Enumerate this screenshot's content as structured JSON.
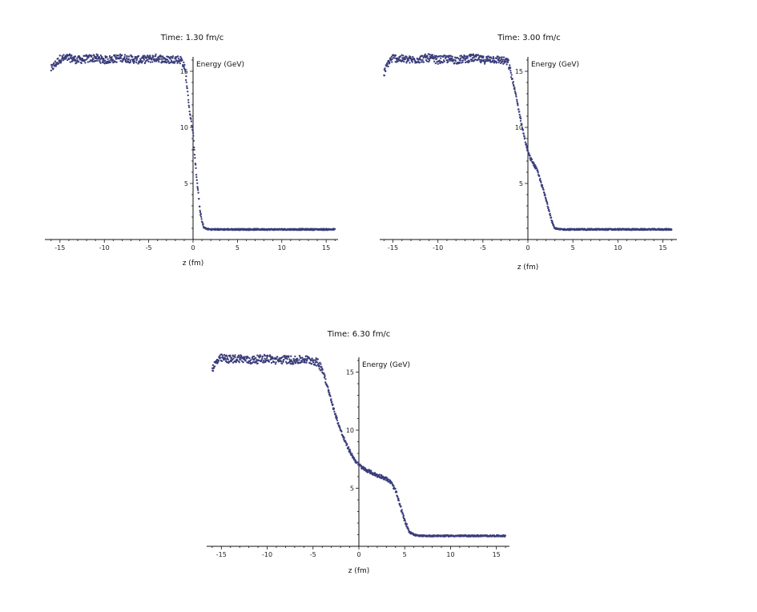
{
  "chart_data": [
    {
      "type": "scatter",
      "title": "Time: 1.30 fm/c",
      "xlabel": "z (fm)",
      "ylabel": "Energy (GeV)",
      "xlim": [
        -16,
        16.5
      ],
      "ylim": [
        0,
        16.5
      ],
      "xticks": [
        -15,
        -10,
        -5,
        0,
        5,
        10,
        15
      ],
      "yticks": [
        5,
        10,
        15
      ],
      "xtick_labels": [
        "-15",
        "-10",
        "-5",
        "0",
        "5",
        "10",
        "15"
      ],
      "ytick_labels": [
        "5",
        "10",
        "15"
      ],
      "grid": false,
      "color": "#3a3d7a",
      "series": [
        {
          "values_description": "plateau ~16 for z < -1, steep drop to ~1 by z ~ 1.5, then flat ~0.9",
          "x": [
            -16,
            -15,
            -14,
            -13,
            -12,
            -11,
            -10,
            -9,
            -8,
            -7,
            -6,
            -5,
            -4,
            -3,
            -2,
            -1.3,
            -1.0,
            -0.8,
            -0.6,
            -0.4,
            -0.2,
            0.0,
            0.2,
            0.4,
            0.6,
            0.8,
            1.0,
            1.2,
            1.5,
            2,
            4,
            6,
            8,
            10,
            12,
            14,
            16
          ],
          "y": [
            15.2,
            16.1,
            16.2,
            16.0,
            16.1,
            16.2,
            16.0,
            16.1,
            16.2,
            16.1,
            16.0,
            16.1,
            16.2,
            16.0,
            16.1,
            16.0,
            15.5,
            14.5,
            13.0,
            11.5,
            10.5,
            9.5,
            7.5,
            5.5,
            4.0,
            2.5,
            1.6,
            1.1,
            0.95,
            0.9,
            0.9,
            0.9,
            0.9,
            0.9,
            0.9,
            0.9,
            0.9
          ]
        }
      ]
    },
    {
      "type": "scatter",
      "title": "Time: 3.00 fm/c",
      "xlabel": "z (fm)",
      "ylabel": "Energy (GeV)",
      "xlim": [
        -16,
        16.5
      ],
      "ylim": [
        0,
        16.5
      ],
      "xticks": [
        -15,
        -10,
        -5,
        0,
        5,
        10,
        15
      ],
      "yticks": [
        5,
        10,
        15
      ],
      "xtick_labels": [
        "-15",
        "-10",
        "-5",
        "0",
        "5",
        "10",
        "15"
      ],
      "ytick_labels": [
        "5",
        "10",
        "15"
      ],
      "grid": false,
      "color": "#3a3d7a",
      "series": [
        {
          "values_description": "plateau ~16 for z < -2, drop through ~7.5 near z = 0, shoulder to ~6 at z ~ 1, drop to ~1 by z ~ 3",
          "x": [
            -16,
            -15.5,
            -15,
            -14,
            -13,
            -12,
            -11,
            -10,
            -9,
            -8,
            -7,
            -6,
            -5,
            -4,
            -3,
            -2.2,
            -2.0,
            -1.5,
            -1.0,
            -0.5,
            0.0,
            0.3,
            0.6,
            1.0,
            1.5,
            2.0,
            2.5,
            2.8,
            3.0,
            3.5,
            5,
            8,
            11,
            14,
            16
          ],
          "y": [
            14.8,
            15.8,
            16.2,
            16.1,
            16.0,
            16.1,
            16.2,
            16.0,
            16.1,
            16.0,
            16.1,
            16.2,
            16.0,
            16.1,
            16.0,
            15.8,
            15.2,
            13.5,
            11.5,
            9.5,
            7.8,
            7.2,
            6.8,
            6.2,
            5.0,
            3.6,
            2.2,
            1.3,
            1.0,
            0.9,
            0.9,
            0.9,
            0.9,
            0.9,
            0.9
          ]
        }
      ]
    },
    {
      "type": "scatter",
      "title": "Time: 6.30 fm/c",
      "xlabel": "z (fm)",
      "ylabel": "Energy (GeV)",
      "xlim": [
        -16,
        16.5
      ],
      "ylim": [
        0,
        16.5
      ],
      "xticks": [
        -15,
        -10,
        -5,
        0,
        5,
        10,
        15
      ],
      "yticks": [
        5,
        10,
        15
      ],
      "xtick_labels": [
        "-15",
        "-10",
        "-5",
        "0",
        "5",
        "10",
        "15"
      ],
      "ytick_labels": [
        "5",
        "10",
        "15"
      ],
      "grid": false,
      "color": "#3a3d7a",
      "series": [
        {
          "values_description": "plateau ~16 for z < -4, drop to ~7 at z ~ 0, shoulder ~6 to z ~ 3.5, drop to ~1 by z ~ 6",
          "x": [
            -16,
            -15.5,
            -15,
            -14,
            -13,
            -12,
            -11,
            -10,
            -9,
            -8,
            -7,
            -6,
            -5,
            -4.5,
            -4.0,
            -3.5,
            -3.0,
            -2.5,
            -2.0,
            -1.5,
            -1.0,
            -0.5,
            0.0,
            0.5,
            1.0,
            1.5,
            2.0,
            2.5,
            3.0,
            3.5,
            4.0,
            4.5,
            5.0,
            5.5,
            6.0,
            6.5,
            8,
            10,
            12,
            14,
            16
          ],
          "y": [
            15.3,
            15.9,
            16.2,
            16.1,
            16.2,
            16.0,
            16.1,
            16.2,
            16.0,
            16.1,
            16.0,
            16.1,
            16.0,
            15.8,
            15.3,
            14.0,
            12.5,
            11.2,
            10.0,
            9.0,
            8.2,
            7.5,
            7.0,
            6.7,
            6.5,
            6.3,
            6.1,
            6.0,
            5.8,
            5.5,
            4.8,
            3.5,
            2.2,
            1.3,
            1.0,
            0.9,
            0.9,
            0.9,
            0.9,
            0.9,
            0.9
          ]
        }
      ]
    }
  ]
}
